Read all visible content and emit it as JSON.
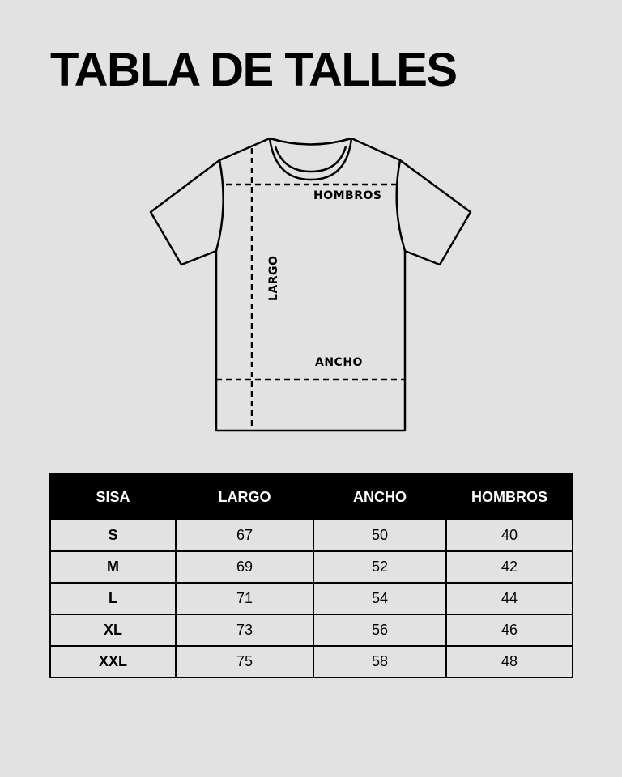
{
  "title": "TABLA DE TALLES",
  "diagram": {
    "labels": {
      "hombros": "HOMBROS",
      "largo": "LARGO",
      "ancho": "ANCHO"
    }
  },
  "table": {
    "headers": [
      "SISA",
      "LARGO",
      "ANCHO",
      "HOMBROS"
    ],
    "rows": [
      [
        "S",
        "67",
        "50",
        "40"
      ],
      [
        "M",
        "69",
        "52",
        "42"
      ],
      [
        "L",
        "71",
        "54",
        "44"
      ],
      [
        "XL",
        "73",
        "56",
        "46"
      ],
      [
        "XXL",
        "75",
        "58",
        "48"
      ]
    ]
  },
  "colors": {
    "background": "#e2e2e2",
    "header_bg": "#000000",
    "header_text": "#ffffff"
  }
}
